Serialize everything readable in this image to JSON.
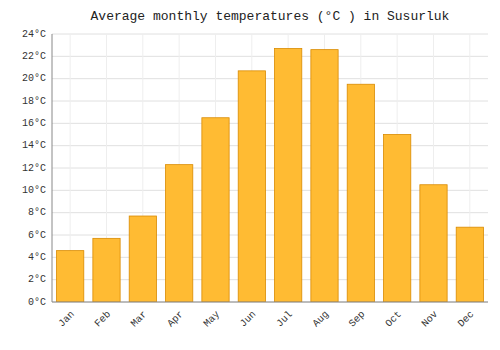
{
  "chart_data": {
    "type": "bar",
    "title": "Average monthly temperatures (°C ) in Susurluk",
    "categories": [
      "Jan",
      "Feb",
      "Mar",
      "Apr",
      "May",
      "Jun",
      "Jul",
      "Aug",
      "Sep",
      "Oct",
      "Nov",
      "Dec"
    ],
    "values": [
      4.6,
      5.7,
      7.7,
      12.3,
      16.5,
      20.7,
      22.7,
      22.6,
      19.5,
      15.0,
      10.5,
      6.7
    ],
    "color": "#FFBB33",
    "ylim": [
      0,
      24
    ],
    "yticks": [
      {
        "value": 0,
        "label": "0°C"
      },
      {
        "value": 2,
        "label": "2°C"
      },
      {
        "value": 4,
        "label": "4°C"
      },
      {
        "value": 6,
        "label": "6°C"
      },
      {
        "value": 8,
        "label": "8°C"
      },
      {
        "value": 10,
        "label": "10°C"
      },
      {
        "value": 12,
        "label": "12°C"
      },
      {
        "value": 14,
        "label": "14°C"
      },
      {
        "value": 16,
        "label": "16°C"
      },
      {
        "value": 18,
        "label": "18°C"
      },
      {
        "value": 20,
        "label": "20°C"
      },
      {
        "value": 22,
        "label": "22°C"
      },
      {
        "value": 24,
        "label": "24°C"
      }
    ],
    "grid": true
  }
}
